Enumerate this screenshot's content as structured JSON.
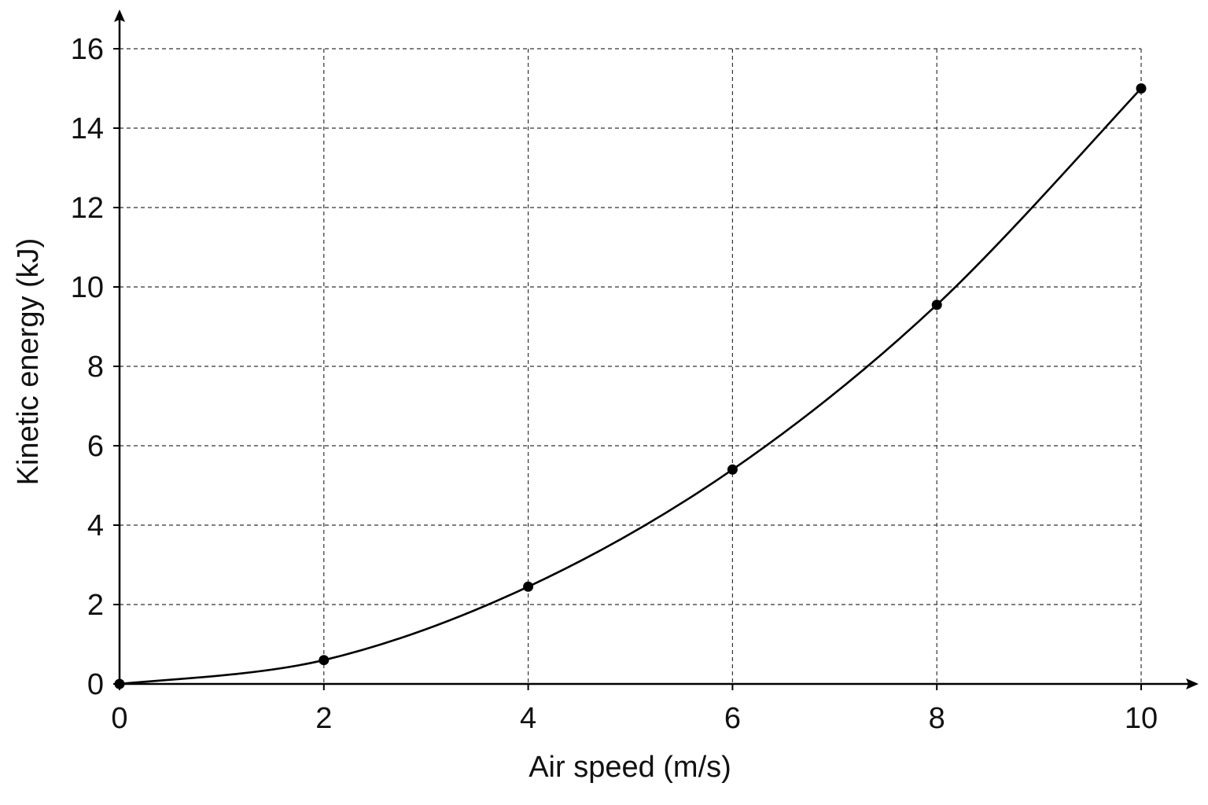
{
  "chart_data": {
    "type": "line",
    "title": "",
    "xlabel": "Air speed (m/s)",
    "ylabel": "Kinetic energy (kJ)",
    "xlim": [
      0,
      10
    ],
    "ylim": [
      0,
      16
    ],
    "xticks": [
      0,
      2,
      4,
      6,
      8,
      10
    ],
    "yticks": [
      0,
      2,
      4,
      6,
      8,
      10,
      12,
      14,
      16
    ],
    "x_tick_labels": [
      "0",
      "2",
      "4",
      "6",
      "8",
      "10"
    ],
    "y_tick_labels": [
      "0",
      "2",
      "4",
      "6",
      "8",
      "10",
      "12",
      "14",
      "16"
    ],
    "grid": true,
    "grid_style": "dashed",
    "legend": "none",
    "series": [
      {
        "x": [
          0,
          2,
          4,
          6,
          8,
          10
        ],
        "y": [
          0,
          0.6,
          2.45,
          5.4,
          9.55,
          15.0
        ],
        "marker": "filled-circle",
        "line": "smooth",
        "color": "#000000"
      }
    ]
  }
}
